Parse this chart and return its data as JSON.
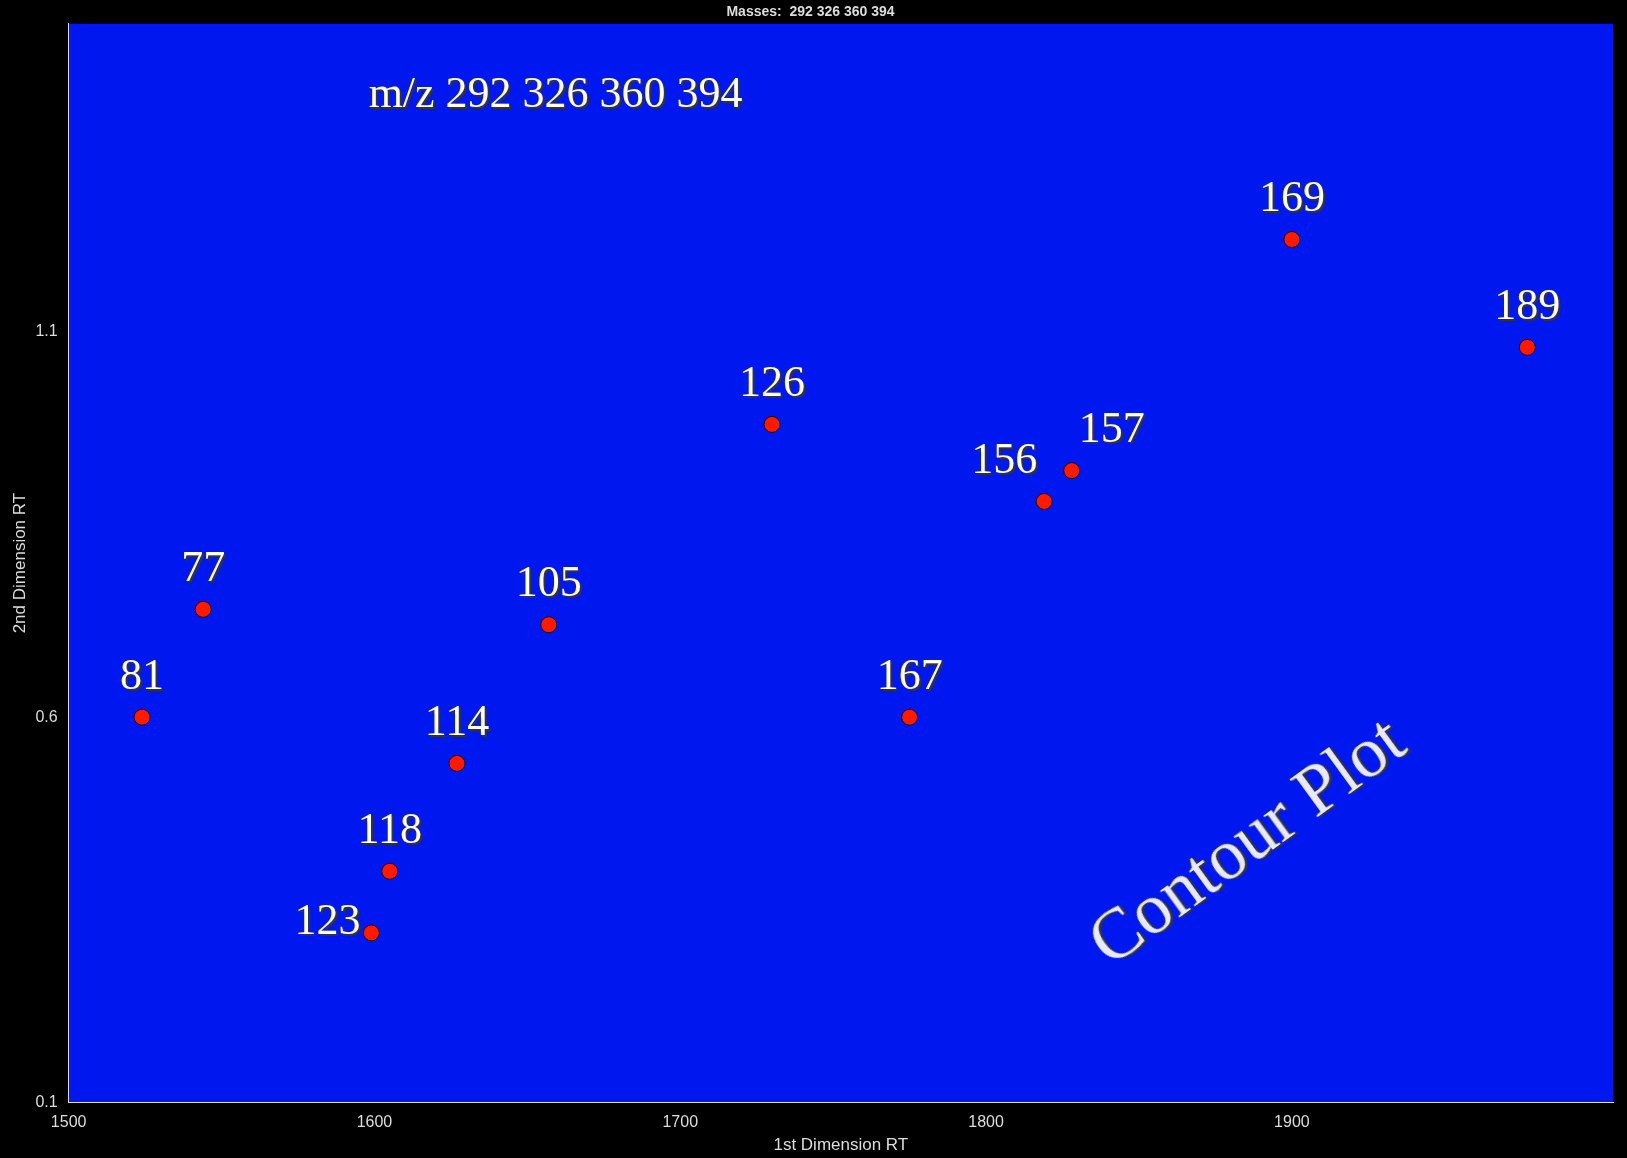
{
  "chart_data": {
    "type": "scatter",
    "title": "Masses:  292 326 360 394",
    "xlabel": "1st Dimension RT",
    "ylabel": "2nd Dimension RT",
    "x": [
      1524,
      1544,
      1599,
      1605,
      1627,
      1657,
      1730,
      1775,
      1819,
      1828,
      1900,
      1977
    ],
    "values": [
      0.6,
      0.74,
      0.32,
      0.4,
      0.54,
      0.72,
      0.98,
      0.6,
      0.88,
      0.92,
      1.22,
      1.08
    ],
    "color": "#ff1a00",
    "marker": "circle",
    "xlim": [
      1500,
      2005
    ],
    "xticks": [
      1500,
      1600,
      1700,
      1800,
      1900
    ],
    "ylim": [
      0.1,
      1.5
    ],
    "yticks": [
      0.1,
      0.6,
      1.1
    ],
    "grid": false,
    "legend": false,
    "annotations": [
      "m/z 292 326 360 394",
      "Contour Plot",
      {
        "text": "81",
        "x": 1524,
        "y": 0.6
      },
      {
        "text": "77",
        "x": 1544,
        "y": 0.74
      },
      {
        "text": "123",
        "x": 1599,
        "y": 0.32
      },
      {
        "text": "118",
        "x": 1605,
        "y": 0.4
      },
      {
        "text": "114",
        "x": 1627,
        "y": 0.54
      },
      {
        "text": "105",
        "x": 1657,
        "y": 0.72
      },
      {
        "text": "126",
        "x": 1730,
        "y": 0.98
      },
      {
        "text": "167",
        "x": 1775,
        "y": 0.6
      },
      {
        "text": "156",
        "x": 1819,
        "y": 0.88
      },
      {
        "text": "157",
        "x": 1828,
        "y": 0.92
      },
      {
        "text": "169",
        "x": 1900,
        "y": 1.22
      },
      {
        "text": "189",
        "x": 1977,
        "y": 1.08
      }
    ]
  }
}
